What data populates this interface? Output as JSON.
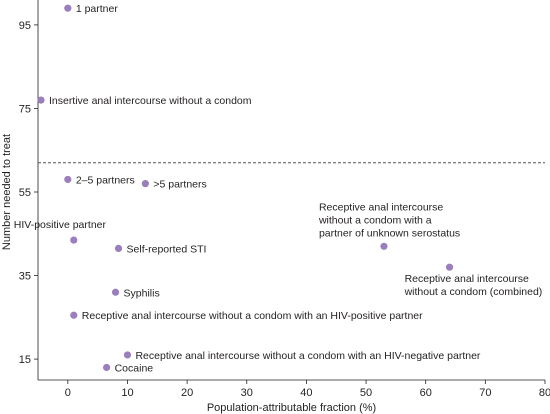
{
  "chart_data": {
    "type": "scatter",
    "xlabel": "Population-attributable fraction (%)",
    "ylabel": "Number needed to treat",
    "xlim": [
      -5,
      80
    ],
    "ylim": [
      10,
      100
    ],
    "x_ticks": [
      0,
      10,
      20,
      30,
      40,
      50,
      60,
      70,
      80
    ],
    "y_ticks": [
      15,
      35,
      55,
      75,
      95
    ],
    "reference_line_y": 62,
    "marker_color": "#9b7fbd",
    "points": [
      {
        "x": 0,
        "y": 99,
        "label": [
          "1 partner"
        ],
        "anchor": "right"
      },
      {
        "x": -4.5,
        "y": 77,
        "label": [
          "Insertive anal intercourse without a condom"
        ],
        "anchor": "right"
      },
      {
        "x": 0,
        "y": 58,
        "label": [
          "2–5 partners"
        ],
        "anchor": "right"
      },
      {
        "x": 13,
        "y": 57,
        "label": [
          ">5 partners"
        ],
        "anchor": "right"
      },
      {
        "x": 53,
        "y": 42,
        "label": [
          "Receptive anal intercourse",
          "without a condom with a",
          "partner of unknown serostatus"
        ],
        "anchor": "above-left"
      },
      {
        "x": 1,
        "y": 43.5,
        "label": [
          "HIV-positive partner"
        ],
        "anchor": "above-left"
      },
      {
        "x": 8.5,
        "y": 41.5,
        "label": [
          "Self-reported STI"
        ],
        "anchor": "right"
      },
      {
        "x": 64,
        "y": 37,
        "label": [
          "Receptive anal intercourse",
          "without a condom (combined)"
        ],
        "anchor": "below-left"
      },
      {
        "x": 8,
        "y": 31,
        "label": [
          "Syphilis"
        ],
        "anchor": "right"
      },
      {
        "x": 1,
        "y": 25.5,
        "label": [
          "Receptive anal intercourse without a condom with an HIV-positive partner"
        ],
        "anchor": "right"
      },
      {
        "x": 10,
        "y": 16,
        "label": [
          "Receptive anal intercourse without a condom with an HIV-negative partner"
        ],
        "anchor": "right"
      },
      {
        "x": 6.5,
        "y": 13,
        "label": [
          "Cocaine"
        ],
        "anchor": "right"
      }
    ]
  }
}
